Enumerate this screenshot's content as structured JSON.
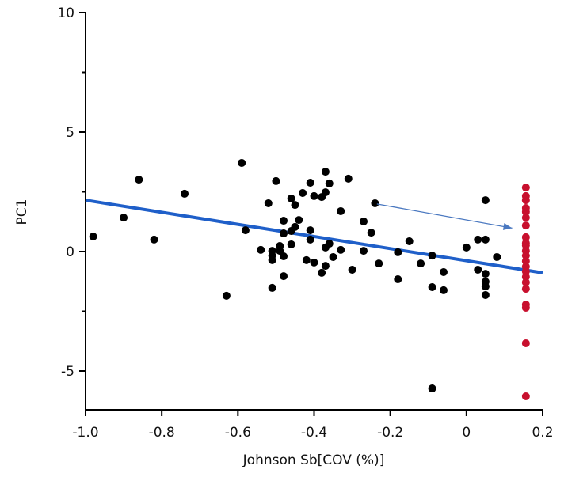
{
  "chart_data": {
    "type": "scatter",
    "title": "",
    "xlabel": "Johnson Sb[COV (%)]",
    "ylabel": "PC1",
    "xlim": [
      -1.0,
      0.2
    ],
    "ylim": [
      -6.6,
      10
    ],
    "xticks": [
      {
        "value": -1.0,
        "label": "-1.0"
      },
      {
        "value": -0.8,
        "label": "-0.8"
      },
      {
        "value": -0.6,
        "label": "-0.6"
      },
      {
        "value": -0.4,
        "label": "-0.4"
      },
      {
        "value": -0.2,
        "label": "-0.2"
      },
      {
        "value": 0.0,
        "label": "0"
      },
      {
        "value": 0.2,
        "label": "0.2"
      }
    ],
    "yticks": [
      {
        "value": 10,
        "label": "10"
      },
      {
        "value": 5,
        "label": "5"
      },
      {
        "value": 0,
        "label": "0"
      },
      {
        "value": -5,
        "label": "-5"
      }
    ],
    "yminor_ticks": [
      7.5,
      2.5,
      -2.5
    ],
    "grid": false,
    "colors": {
      "observed": "#000000",
      "imputed": "#c8102e",
      "fit_line": "#1f5fc9",
      "arrow": "#4a78c0",
      "axis": "#000000"
    },
    "series": [
      {
        "name": "observed",
        "points": [
          [
            -0.98,
            0.63
          ],
          [
            -0.9,
            1.42
          ],
          [
            -0.86,
            3.01
          ],
          [
            -0.82,
            0.5
          ],
          [
            -0.74,
            2.42
          ],
          [
            -0.63,
            -1.85
          ],
          [
            -0.59,
            3.71
          ],
          [
            -0.58,
            0.89
          ],
          [
            -0.54,
            0.07
          ],
          [
            -0.52,
            2.02
          ],
          [
            -0.5,
            2.95
          ],
          [
            -0.51,
            0.03
          ],
          [
            -0.51,
            -0.17
          ],
          [
            -0.51,
            -0.36
          ],
          [
            -0.51,
            -1.52
          ],
          [
            -0.49,
            0.03
          ],
          [
            -0.49,
            0.23
          ],
          [
            -0.48,
            -0.2
          ],
          [
            -0.48,
            -1.03
          ],
          [
            -0.48,
            1.29
          ],
          [
            -0.48,
            0.76
          ],
          [
            -0.46,
            2.22
          ],
          [
            -0.45,
            1.95
          ],
          [
            -0.46,
            0.86
          ],
          [
            -0.46,
            0.3
          ],
          [
            -0.45,
            1.03
          ],
          [
            -0.44,
            1.32
          ],
          [
            -0.43,
            2.45
          ],
          [
            -0.42,
            -0.36
          ],
          [
            -0.41,
            2.88
          ],
          [
            -0.4,
            2.32
          ],
          [
            -0.41,
            0.5
          ],
          [
            -0.41,
            0.89
          ],
          [
            -0.4,
            -0.46
          ],
          [
            -0.38,
            2.28
          ],
          [
            -0.37,
            3.34
          ],
          [
            -0.37,
            2.48
          ],
          [
            -0.36,
            2.85
          ],
          [
            -0.37,
            0.17
          ],
          [
            -0.38,
            -0.89
          ],
          [
            -0.37,
            -0.6
          ],
          [
            -0.36,
            0.33
          ],
          [
            -0.35,
            -0.23
          ],
          [
            -0.33,
            0.07
          ],
          [
            -0.33,
            1.69
          ],
          [
            -0.31,
            3.05
          ],
          [
            -0.3,
            -0.76
          ],
          [
            -0.27,
            1.26
          ],
          [
            -0.27,
            0.03
          ],
          [
            -0.25,
            0.79
          ],
          [
            -0.24,
            2.02
          ],
          [
            -0.23,
            -0.5
          ],
          [
            -0.18,
            -1.16
          ],
          [
            -0.18,
            -0.03
          ],
          [
            -0.15,
            0.43
          ],
          [
            -0.12,
            -0.5
          ],
          [
            -0.09,
            -0.17
          ],
          [
            -0.09,
            -1.49
          ],
          [
            -0.09,
            -5.73
          ],
          [
            -0.06,
            -0.86
          ],
          [
            -0.06,
            -1.62
          ],
          [
            0.0,
            0.17
          ],
          [
            0.03,
            0.5
          ],
          [
            0.05,
            0.5
          ],
          [
            0.05,
            2.15
          ],
          [
            0.03,
            -0.76
          ],
          [
            0.05,
            -0.93
          ],
          [
            0.05,
            -1.26
          ],
          [
            0.05,
            -1.46
          ],
          [
            0.05,
            -1.82
          ],
          [
            0.08,
            -0.23
          ]
        ]
      },
      {
        "name": "imputed",
        "points": [
          [
            0.156,
            2.68
          ],
          [
            0.156,
            2.32
          ],
          [
            0.156,
            2.15
          ],
          [
            0.156,
            1.82
          ],
          [
            0.156,
            1.66
          ],
          [
            0.156,
            1.42
          ],
          [
            0.156,
            1.09
          ],
          [
            0.156,
            0.6
          ],
          [
            0.156,
            0.36
          ],
          [
            0.156,
            0.26
          ],
          [
            0.156,
            0.03
          ],
          [
            0.156,
            -0.17
          ],
          [
            0.156,
            -0.4
          ],
          [
            0.156,
            -0.63
          ],
          [
            0.156,
            -0.83
          ],
          [
            0.156,
            -1.06
          ],
          [
            0.156,
            -1.29
          ],
          [
            0.156,
            -1.56
          ],
          [
            0.156,
            -2.22
          ],
          [
            0.156,
            -2.35
          ],
          [
            0.156,
            -3.84
          ],
          [
            0.156,
            -6.06
          ]
        ]
      }
    ],
    "fit_line": {
      "x": [
        -1.0,
        0.2
      ],
      "y": [
        2.15,
        -0.89
      ]
    },
    "annotation_arrow": {
      "from": [
        -0.235,
        1.99
      ],
      "to": [
        0.12,
        0.98
      ]
    }
  }
}
